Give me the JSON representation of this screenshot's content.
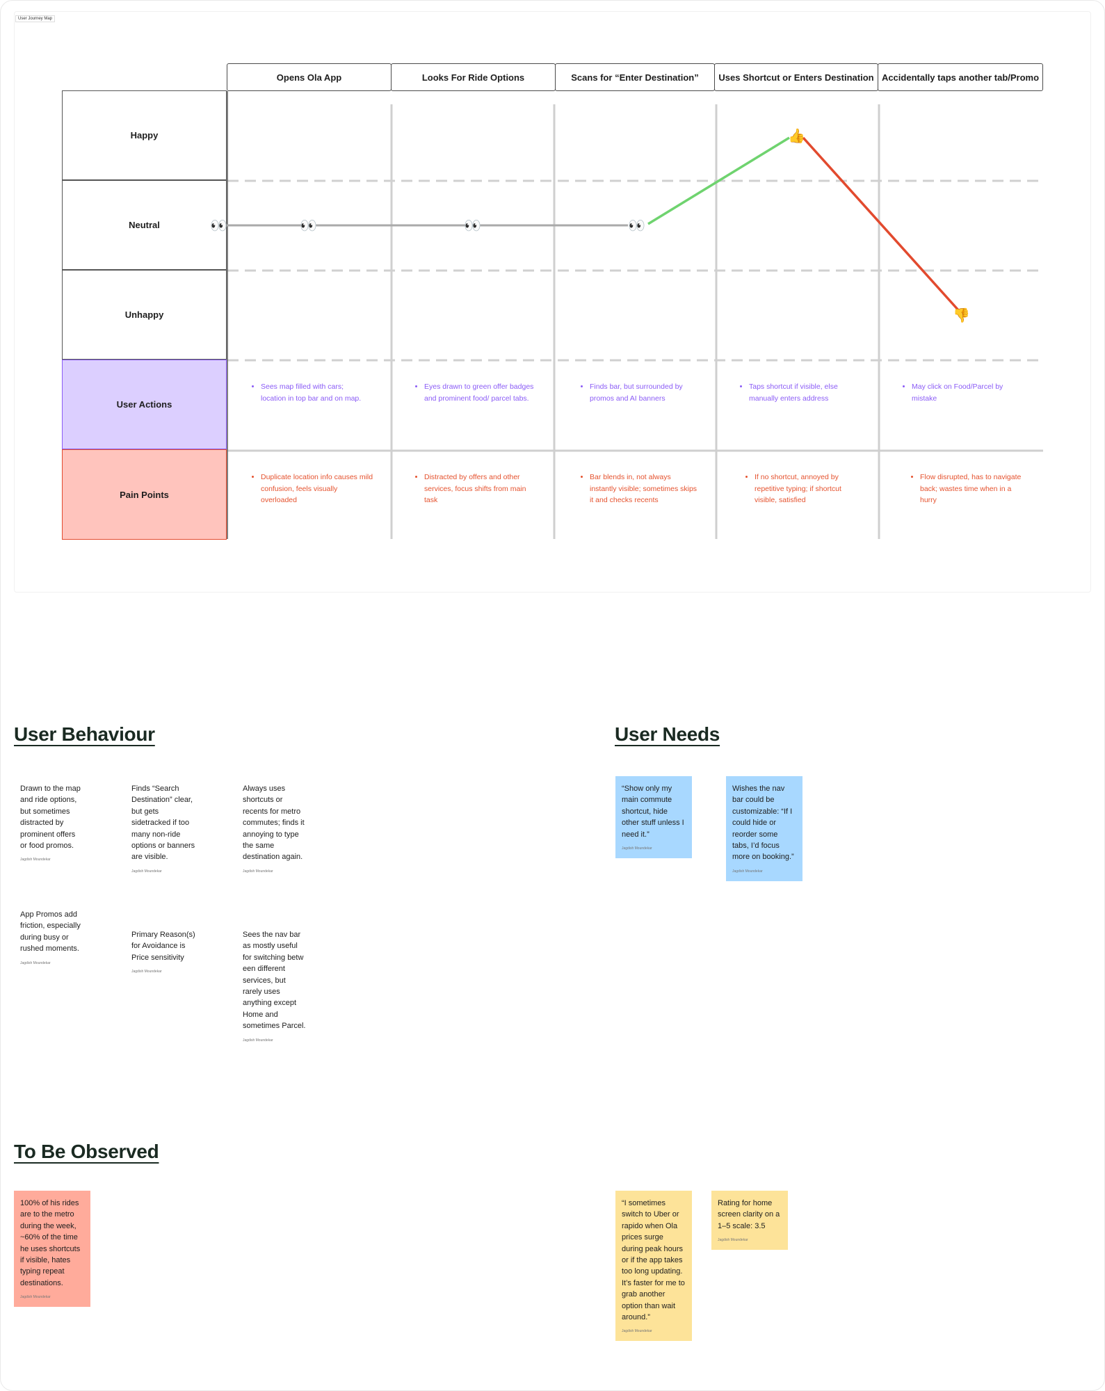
{
  "frame_tag": "User Journey Map",
  "stages": [
    "Opens Ola App",
    "Looks For Ride Options",
    "Scans for “Enter Destination”",
    "Uses Shortcut or Enters Destination",
    "Accidentally taps another tab/Promo"
  ],
  "rows": [
    "Happy",
    "Neutral",
    "Unhappy",
    "User Actions",
    "Pain Points"
  ],
  "user_actions": [
    "Sees map filled with cars; location in top bar and on map.",
    "Eyes drawn to green offer badges and prominent food/ parcel tabs.",
    "Finds bar, but surrounded by promos and AI banners",
    "Taps shortcut if visible, else manually enters address",
    "May click on Food/Parcel by mistake"
  ],
  "pain_points": [
    "Duplicate location info causes mild confusion, feels visually overloaded",
    "Distracted by offers and other services, focus shifts from main task",
    "Bar blends in, not always instantly visible; sometimes skips it and checks recents",
    "If no shortcut, annoyed by repetitive typing; if shortcut visible, satisfied",
    "Flow disrupted, has to navigate back; wastes time when in a hurry"
  ],
  "emotion_markers": {
    "neutral_icon": "eyes-icon",
    "happy_icon": "thumbs-up-icon",
    "unhappy_icon": "thumbs-down-icon"
  },
  "colors": {
    "actions": "#8b5cf6",
    "pains": "#e5522e",
    "rise_line": "#6fd36f",
    "fall_line": "#e24a2e",
    "note_blue": "#a8d8ff",
    "note_yellow": "#fde399",
    "note_red": "#ffab9b"
  },
  "sections": {
    "behaviour": "User Behaviour",
    "needs": "User Needs",
    "observed": "To Be Observed"
  },
  "author": "Jagdish Moundekar",
  "behaviour_notes": [
    "Drawn to the map and ride options, but sometimes distracted by prominent offers or food promos.",
    "Finds “Search Destination” clear, but gets sidetracked if too many non-ride options or banners are visible.",
    "Always uses shortcuts or recents for metro commutes; finds it annoying to type the same destination again.",
    "App Promos add friction, especially during busy or rushed moments.",
    "Primary Reason(s) for Avoidance is Price sensitivity",
    "Sees the nav bar as mostly useful for switching betw een different services, but rarely uses anything except Home and sometimes Parcel."
  ],
  "need_notes": [
    "“Show only my main commute shortcut, hide other stuff unless I need it.”",
    "Wishes the nav bar could be customizable: “If I could hide or reorder some tabs, I’d focus more on booking.”"
  ],
  "observed_notes": [
    "100% of his rides are to the metro during the week, ~60% of the time he uses shortcuts if visible, hates typing repeat destinations.",
    "“I sometimes switch to Uber or rapido when Ola prices surge during peak hours or if the app takes too long updating. It’s faster for me to grab another option than wait around.”",
    "Rating for home screen clarity on a 1–5 scale: 3.5"
  ]
}
